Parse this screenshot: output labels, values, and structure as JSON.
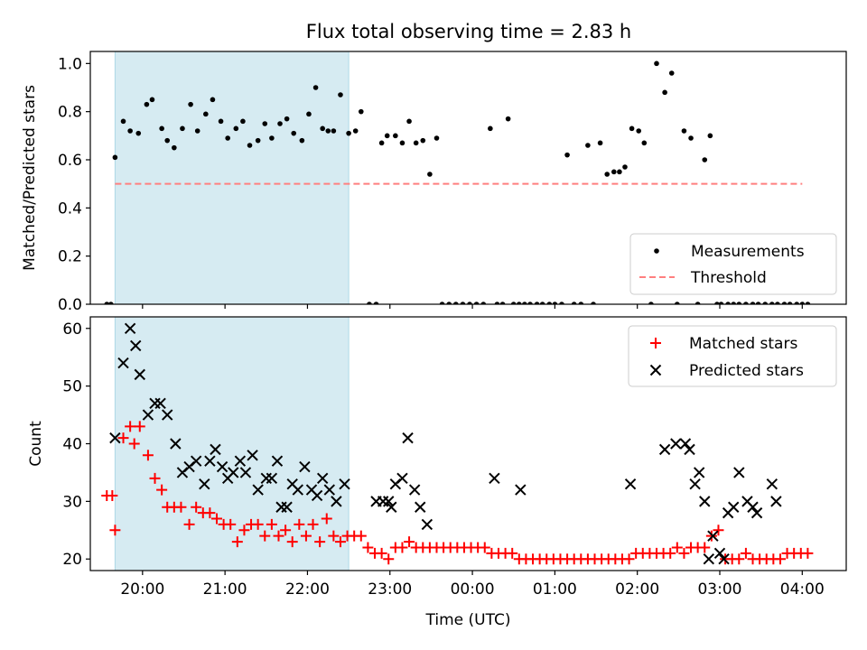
{
  "title": "Flux total observing time = 2.83 h",
  "colors": {
    "shade": "#add8e6",
    "measurement": "#000000",
    "threshold": "#ff7f7f",
    "matched": "#ff0000",
    "predicted": "#000000"
  },
  "chart_data": [
    {
      "type": "scatter",
      "ylabel": "Matched/Predicted stars",
      "ylim": [
        0,
        1.05
      ],
      "yticks": [
        "0.0",
        "0.2",
        "0.4",
        "0.6",
        "0.8",
        "1.0"
      ],
      "xlim": [
        "19:22",
        "04:32"
      ],
      "xticks": [
        "20:00",
        "21:00",
        "22:00",
        "23:00",
        "00:00",
        "01:00",
        "02:00",
        "03:00",
        "04:00"
      ],
      "shaded_span": [
        "19:40",
        "22:30"
      ],
      "threshold": {
        "y": 0.5,
        "x": [
          "19:40",
          "04:00"
        ]
      },
      "legend": {
        "position": "lower right",
        "entries": [
          "Measurements",
          "Threshold"
        ]
      },
      "series": [
        {
          "name": "Measurements",
          "x": [
            "19:34",
            "19:37",
            "19:40",
            "19:46",
            "19:51",
            "19:57",
            "20:03",
            "20:07",
            "20:14",
            "20:18",
            "20:23",
            "20:29",
            "20:35",
            "20:40",
            "20:46",
            "20:51",
            "20:57",
            "21:02",
            "21:08",
            "21:13",
            "21:18",
            "21:24",
            "21:29",
            "21:34",
            "21:40",
            "21:45",
            "21:50",
            "21:56",
            "22:01",
            "22:06",
            "22:11",
            "22:15",
            "22:19",
            "22:24",
            "22:30",
            "22:35",
            "22:39",
            "22:45",
            "22:50",
            "22:54",
            "22:58",
            "23:04",
            "23:09",
            "23:14",
            "23:19",
            "23:24",
            "23:29",
            "23:34",
            "23:38",
            "23:43",
            "23:48",
            "23:53",
            "23:58",
            "00:03",
            "00:08",
            "00:13",
            "00:18",
            "00:22",
            "00:26",
            "00:30",
            "00:34",
            "00:38",
            "00:42",
            "00:47",
            "00:51",
            "00:56",
            "01:00",
            "01:05",
            "01:09",
            "01:14",
            "01:19",
            "01:24",
            "01:28",
            "01:33",
            "01:38",
            "01:43",
            "01:47",
            "01:51",
            "01:56",
            "02:01",
            "02:05",
            "02:10",
            "02:14",
            "02:20",
            "02:25",
            "02:29",
            "02:34",
            "02:39",
            "02:44",
            "02:49",
            "02:53",
            "02:58",
            "03:01",
            "03:06",
            "03:10",
            "03:14",
            "03:19",
            "03:24",
            "03:28",
            "03:33",
            "03:38",
            "03:42",
            "03:47",
            "03:51",
            "03:56",
            "04:00",
            "04:04"
          ],
          "y": [
            0,
            0,
            0.61,
            0.76,
            0.72,
            0.71,
            0.83,
            0.85,
            0.73,
            0.68,
            0.65,
            0.73,
            0.83,
            0.72,
            0.79,
            0.85,
            0.76,
            0.69,
            0.73,
            0.76,
            0.66,
            0.68,
            0.75,
            0.69,
            0.75,
            0.77,
            0.71,
            0.68,
            0.79,
            0.9,
            0.73,
            0.72,
            0.72,
            0.87,
            0.71,
            0.72,
            0.8,
            0,
            0,
            0.67,
            0.7,
            0.7,
            0.67,
            0.76,
            0.67,
            0.68,
            0.54,
            0.69,
            0,
            0,
            0,
            0,
            0,
            0,
            0,
            0.73,
            0,
            0,
            0.77,
            0,
            0,
            0,
            0,
            0,
            0,
            0,
            0,
            0,
            0.62,
            0,
            0,
            0.66,
            0,
            0.67,
            0.54,
            0.55,
            0.55,
            0.57,
            0.73,
            0.72,
            0.67,
            0,
            1.0,
            0.88,
            0.96,
            0,
            0.72,
            0.69,
            0,
            0.6,
            0.7,
            0,
            0,
            0,
            0,
            0,
            0,
            0,
            0,
            0,
            0,
            0,
            0,
            0,
            0,
            0,
            0
          ]
        }
      ]
    },
    {
      "type": "scatter",
      "xlabel": "Time (UTC)",
      "ylabel": "Count",
      "ylim": [
        18,
        62
      ],
      "yticks": [
        "20",
        "30",
        "40",
        "50",
        "60"
      ],
      "xlim": [
        "19:22",
        "04:32"
      ],
      "xticks": [
        "20:00",
        "21:00",
        "22:00",
        "23:00",
        "00:00",
        "01:00",
        "02:00",
        "03:00",
        "04:00"
      ],
      "shaded_span": [
        "19:40",
        "22:30"
      ],
      "legend": {
        "position": "upper right",
        "entries": [
          "Matched stars",
          "Predicted stars"
        ]
      },
      "series": [
        {
          "name": "Matched stars",
          "x": [
            "19:34",
            "19:38",
            "19:40",
            "19:46",
            "19:51",
            "19:54",
            "19:58",
            "20:04",
            "20:09",
            "20:14",
            "20:18",
            "20:23",
            "20:28",
            "20:34",
            "20:39",
            "20:44",
            "20:49",
            "20:54",
            "20:59",
            "21:04",
            "21:09",
            "21:14",
            "21:19",
            "21:24",
            "21:29",
            "21:34",
            "21:39",
            "21:44",
            "21:49",
            "21:54",
            "21:59",
            "22:04",
            "22:09",
            "22:14",
            "22:19",
            "22:24",
            "22:29",
            "22:34",
            "22:39",
            "22:44",
            "22:49",
            "22:54",
            "22:59",
            "23:04",
            "23:09",
            "23:14",
            "23:19",
            "23:24",
            "23:29",
            "23:34",
            "23:39",
            "23:44",
            "23:49",
            "23:54",
            "23:59",
            "00:04",
            "00:09",
            "00:14",
            "00:19",
            "00:24",
            "00:29",
            "00:34",
            "00:39",
            "00:44",
            "00:49",
            "00:54",
            "00:59",
            "01:04",
            "01:09",
            "01:14",
            "01:19",
            "01:24",
            "01:29",
            "01:34",
            "01:39",
            "01:44",
            "01:49",
            "01:54",
            "01:59",
            "02:04",
            "02:09",
            "02:14",
            "02:19",
            "02:24",
            "02:29",
            "02:34",
            "02:39",
            "02:44",
            "02:49",
            "02:54",
            "02:59",
            "03:04",
            "03:09",
            "03:14",
            "03:19",
            "03:24",
            "03:29",
            "03:34",
            "03:39",
            "03:44",
            "03:49",
            "03:54",
            "03:59",
            "04:04"
          ],
          "y": [
            31,
            31,
            25,
            41,
            43,
            40,
            43,
            38,
            34,
            32,
            29,
            29,
            29,
            26,
            29,
            28,
            28,
            27,
            26,
            26,
            23,
            25,
            26,
            26,
            24,
            26,
            24,
            25,
            23,
            26,
            24,
            26,
            23,
            27,
            24,
            23,
            24,
            24,
            24,
            22,
            21,
            21,
            20,
            22,
            22,
            23,
            22,
            22,
            22,
            22,
            22,
            22,
            22,
            22,
            22,
            22,
            22,
            21,
            21,
            21,
            21,
            20,
            20,
            20,
            20,
            20,
            20,
            20,
            20,
            20,
            20,
            20,
            20,
            20,
            20,
            20,
            20,
            20,
            21,
            21,
            21,
            21,
            21,
            21,
            22,
            21,
            22,
            22,
            22,
            24,
            25,
            20,
            20,
            20,
            21,
            20,
            20,
            20,
            20,
            20,
            21,
            21,
            21,
            21
          ]
        },
        {
          "name": "Predicted stars",
          "x": [
            "19:40",
            "19:46",
            "19:51",
            "19:55",
            "19:58",
            "20:04",
            "20:09",
            "20:13",
            "20:18",
            "20:24",
            "20:29",
            "20:34",
            "20:39",
            "20:45",
            "20:49",
            "20:53",
            "20:58",
            "21:02",
            "21:06",
            "21:11",
            "21:15",
            "21:20",
            "21:24",
            "21:30",
            "21:34",
            "21:38",
            "21:41",
            "21:45",
            "21:49",
            "21:53",
            "21:58",
            "22:03",
            "22:07",
            "22:11",
            "22:16",
            "22:21",
            "22:27",
            "22:50",
            "22:55",
            "22:59",
            "23:01",
            "23:04",
            "23:09",
            "23:13",
            "23:18",
            "23:22",
            "23:27",
            "00:16",
            "00:35",
            "01:55",
            "02:20",
            "02:28",
            "02:35",
            "02:38",
            "02:42",
            "02:45",
            "02:49",
            "02:52",
            "02:55",
            "03:00",
            "03:03",
            "03:06",
            "03:10",
            "03:14",
            "03:20",
            "03:24",
            "03:27",
            "03:38",
            "03:41"
          ],
          "y": [
            41,
            54,
            60,
            57,
            52,
            45,
            47,
            47,
            45,
            40,
            35,
            36,
            37,
            33,
            37,
            39,
            36,
            34,
            35,
            37,
            35,
            38,
            32,
            34,
            34,
            37,
            29,
            29,
            33,
            32,
            36,
            32,
            31,
            34,
            32,
            30,
            33,
            30,
            30,
            30,
            29,
            33,
            34,
            41,
            32,
            29,
            26,
            34,
            32,
            33,
            39,
            40,
            40,
            39,
            33,
            35,
            30,
            20,
            24,
            21,
            20,
            28,
            29,
            35,
            30,
            29,
            28,
            33,
            30
          ]
        }
      ]
    }
  ]
}
